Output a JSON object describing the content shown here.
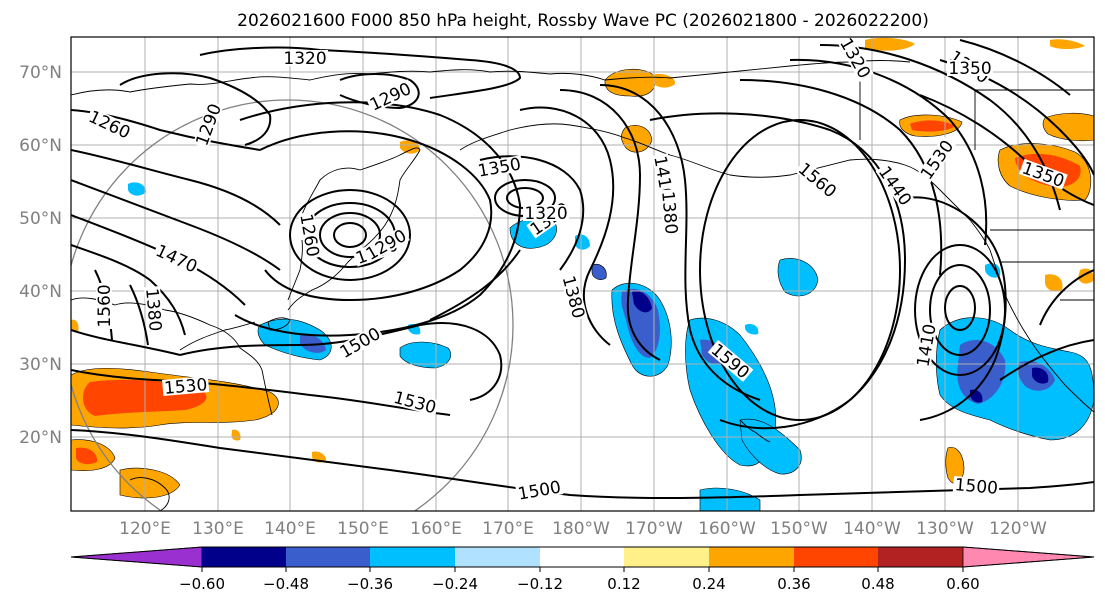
{
  "title": "2026021600 F000 850 hPa height, Rossby Wave PC (2026021800 - 2026022200)",
  "lat_labels": [
    "70°N",
    "60°N",
    "50°N",
    "40°N",
    "30°N",
    "20°N"
  ],
  "lon_labels": [
    "120°E",
    "130°E",
    "140°E",
    "150°E",
    "160°E",
    "170°E",
    "180°W",
    "170°W",
    "160°W",
    "150°W",
    "140°W",
    "130°W",
    "120°W"
  ],
  "colorbar": {
    "colors": [
      "#9b30d0",
      "#00008b",
      "#3a5fcd",
      "#00bfff",
      "#b0e2ff",
      "#ffffff",
      "#fff08a",
      "#ffa500",
      "#ff4500",
      "#b22222",
      "#ff88b0"
    ],
    "tick_labels": [
      "−0.60",
      "−0.48",
      "−0.36",
      "−0.24",
      "−0.12",
      "0.12",
      "0.24",
      "0.36",
      "0.48",
      "0.60"
    ]
  },
  "contour_labels": [
    "1320",
    "1290",
    "1260",
    "1290",
    "1350",
    "1470",
    "1560",
    "1380",
    "1320",
    "1290",
    "1290",
    "1350",
    "1320",
    "1410",
    "1530",
    "1380",
    "1500",
    "1530",
    "1530",
    "1560",
    "1590",
    "1320",
    "1260",
    "1290",
    "1380",
    "1440",
    "1350",
    "1410",
    "1500",
    "1500"
  ],
  "colors": {
    "contour": "#000000",
    "coast": "#000000",
    "grid": "#b0b0b0",
    "circle": "#808080"
  }
}
